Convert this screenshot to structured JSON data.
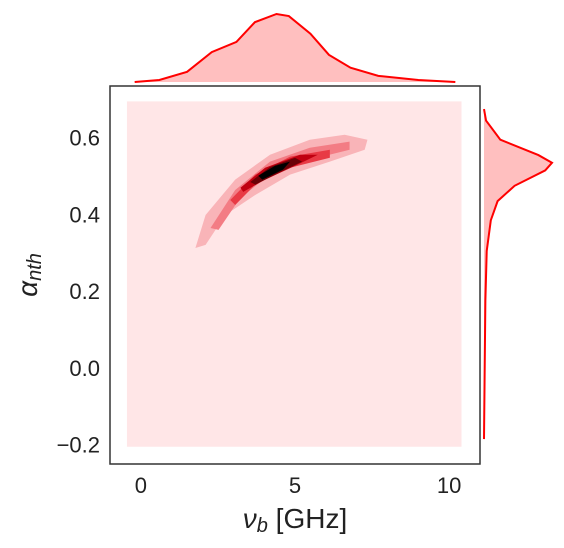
{
  "chart_data": {
    "type": "kde-joint",
    "xlabel": {
      "symbol": "ν",
      "sub": "b",
      "rest": " [GHz]"
    },
    "ylabel": {
      "symbol": "α",
      "sub": "nth"
    },
    "xlim": [
      -1,
      11
    ],
    "ylim": [
      -0.245,
      0.74
    ],
    "xticks": [
      0,
      5,
      10
    ],
    "yticks": [
      {
        "value": -0.2,
        "label": "−0.2"
      },
      {
        "value": 0,
        "label": "0.0"
      },
      0.2,
      0.4,
      0.6
    ],
    "contours": [
      {
        "color": "#ffe6e7",
        "x": [
          -0.45,
          10.4,
          10.4,
          -0.45
        ],
        "y": [
          0.7,
          0.7,
          -0.2,
          -0.2
        ]
      },
      {
        "color": "#f9b4b8",
        "x": [
          1.77,
          2.1,
          3.06,
          4.19,
          5.48,
          6.61,
          7.35,
          7.26,
          6.13,
          4.84,
          3.71,
          2.74,
          2.1
        ],
        "y": [
          0.318,
          0.404,
          0.496,
          0.561,
          0.6,
          0.613,
          0.6,
          0.574,
          0.543,
          0.509,
          0.456,
          0.404,
          0.326
        ]
      },
      {
        "color": "#f37c84",
        "x": [
          2.26,
          3.06,
          4.19,
          5.48,
          6.77,
          6.77,
          5.48,
          4.19,
          3.23,
          2.52
        ],
        "y": [
          0.37,
          0.469,
          0.543,
          0.579,
          0.595,
          0.574,
          0.548,
          0.509,
          0.449,
          0.365
        ]
      },
      {
        "color": "#e83a45",
        "x": [
          2.9,
          3.71,
          4.84,
          6.13,
          6.13,
          4.84,
          3.71,
          3.06
        ],
        "y": [
          0.443,
          0.509,
          0.556,
          0.574,
          0.553,
          0.527,
          0.483,
          0.43
        ]
      },
      {
        "color": "#c00010",
        "x": [
          3.23,
          4.03,
          5.16,
          5.74,
          5.0,
          4.03,
          3.32
        ],
        "y": [
          0.475,
          0.527,
          0.561,
          0.561,
          0.532,
          0.496,
          0.464
        ]
      },
      {
        "color": "#6a0006",
        "x": [
          3.55,
          4.19,
          5.0,
          5.23,
          4.52,
          3.71
        ],
        "y": [
          0.49,
          0.529,
          0.553,
          0.543,
          0.516,
          0.483
        ]
      },
      {
        "color": "#000000",
        "x": [
          3.81,
          4.35,
          4.84,
          4.61,
          3.94
        ],
        "y": [
          0.506,
          0.532,
          0.543,
          0.522,
          0.496
        ]
      }
    ],
    "marginal_color": "red",
    "marginal_x": {
      "x": [
        -0.2,
        0.6,
        1.5,
        2.3,
        3.1,
        3.7,
        4.4,
        4.8,
        5.5,
        6.1,
        6.8,
        7.7,
        9.0,
        10.2
      ],
      "density": [
        0,
        0.03,
        0.15,
        0.44,
        0.59,
        0.88,
        1,
        0.97,
        0.71,
        0.4,
        0.21,
        0.09,
        0.03,
        0
      ]
    },
    "marginal_y": {
      "y": [
        0.68,
        0.65,
        0.6,
        0.56,
        0.54,
        0.52,
        0.48,
        0.44,
        0.39,
        0.31,
        0.18,
        -0.18
      ],
      "density": [
        0,
        0.03,
        0.24,
        0.8,
        1,
        0.9,
        0.45,
        0.2,
        0.1,
        0.04,
        0.02,
        0
      ]
    }
  }
}
